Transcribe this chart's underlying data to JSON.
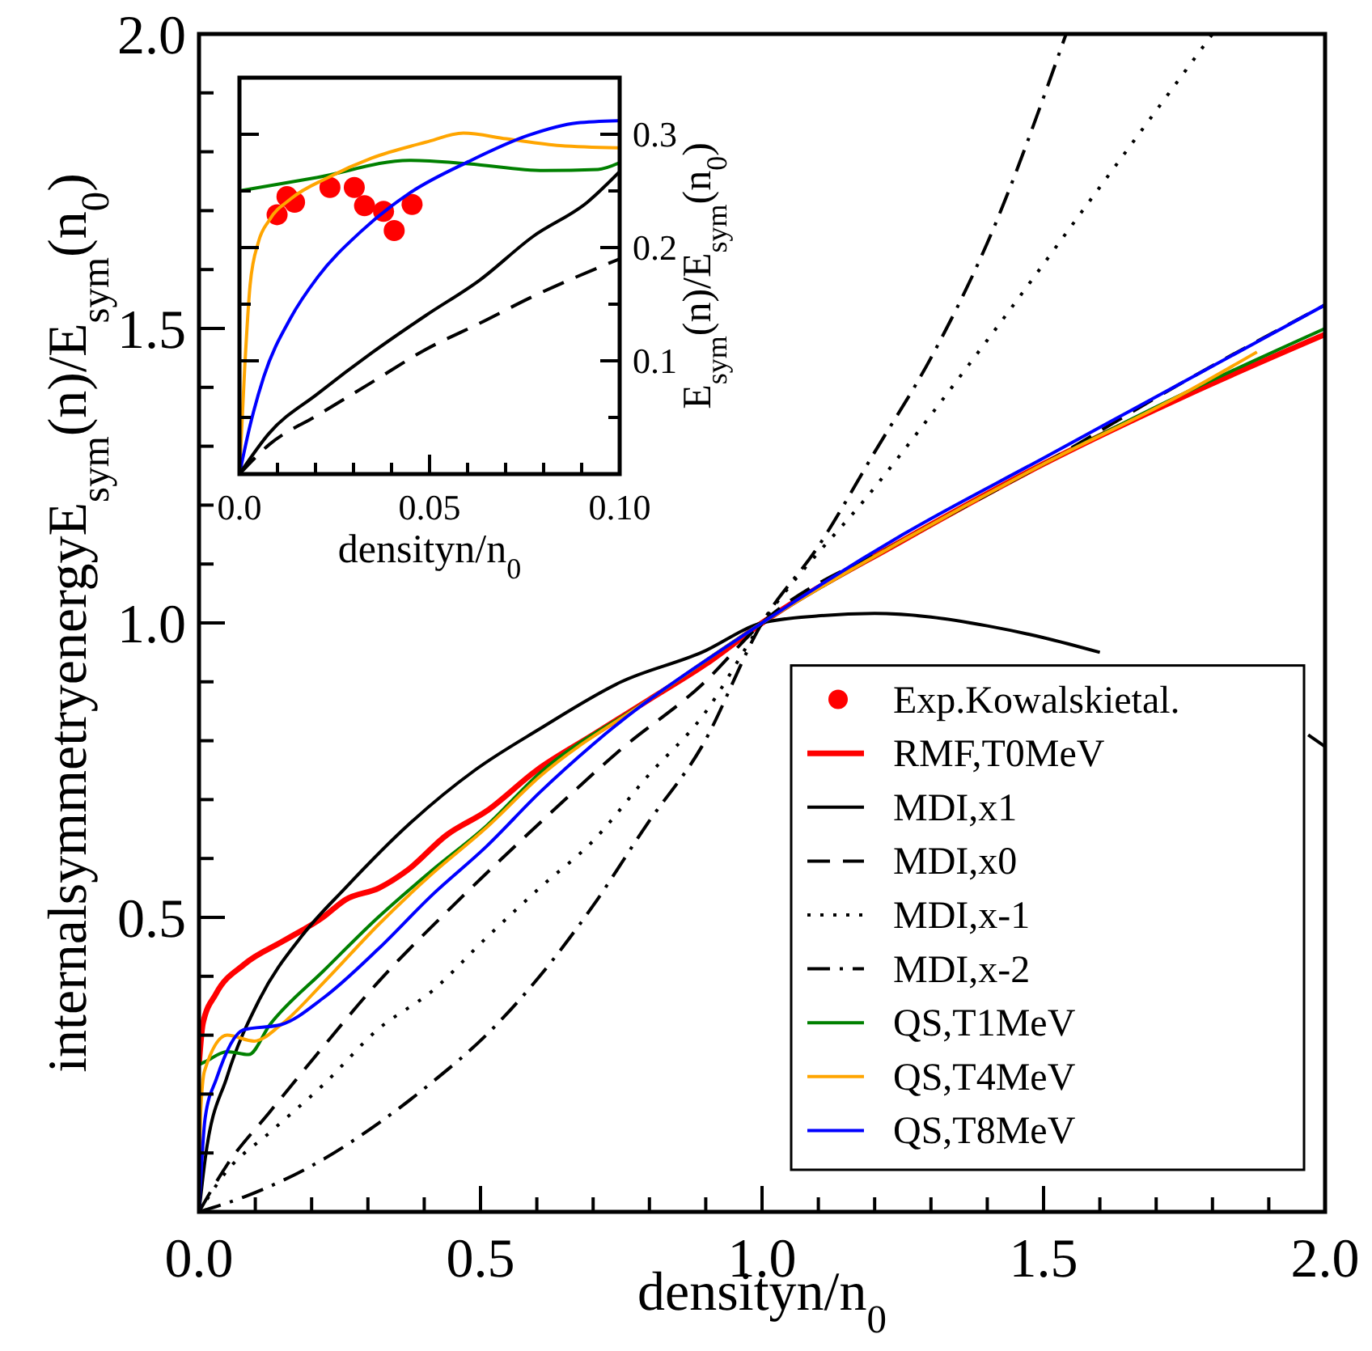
{
  "chart_data": [
    {
      "type": "line",
      "xlabel": "densityn/n$_{0}$",
      "ylabel": "internalsymmetryenergyE$_{sym}$(n)/E$_{sym}$(n$_{0}$)",
      "xlim": [
        0,
        2
      ],
      "ylim": [
        0,
        2
      ],
      "xticks": [
        {
          "value": 0,
          "label": "0.0"
        },
        {
          "value": 0.1,
          "label": null
        },
        {
          "value": 0.2,
          "label": null
        },
        {
          "value": 0.3,
          "label": null
        },
        {
          "value": 0.4,
          "label": null
        },
        0.5,
        {
          "value": 0.6,
          "label": null
        },
        {
          "value": 0.7,
          "label": null
        },
        {
          "value": 0.8,
          "label": null
        },
        {
          "value": 0.9,
          "label": null
        },
        {
          "value": 1,
          "label": "1.0"
        },
        {
          "value": 1.1,
          "label": null
        },
        {
          "value": 1.2,
          "label": null
        },
        {
          "value": 1.3,
          "label": null
        },
        {
          "value": 1.4,
          "label": null
        },
        1.5,
        {
          "value": 1.6,
          "label": null
        },
        {
          "value": 1.7,
          "label": null
        },
        {
          "value": 1.8,
          "label": null
        },
        {
          "value": 1.9,
          "label": null
        },
        {
          "value": 2,
          "label": "2.0"
        }
      ],
      "yticks": [
        {
          "value": 0,
          "label": null
        },
        {
          "value": 0.1,
          "label": null
        },
        {
          "value": 0.2,
          "label": null
        },
        {
          "value": 0.3,
          "label": null
        },
        {
          "value": 0.4,
          "label": null
        },
        0.5,
        {
          "value": 0.6,
          "label": null
        },
        {
          "value": 0.7,
          "label": null
        },
        {
          "value": 0.8,
          "label": null
        },
        {
          "value": 0.9,
          "label": null
        },
        {
          "value": 1,
          "label": "1.0"
        },
        {
          "value": 1.1,
          "label": null
        },
        {
          "value": 1.2,
          "label": null
        },
        {
          "value": 1.3,
          "label": null
        },
        {
          "value": 1.4,
          "label": null
        },
        1.5,
        {
          "value": 1.6,
          "label": null
        },
        {
          "value": 1.7,
          "label": null
        },
        {
          "value": 1.8,
          "label": null
        },
        {
          "value": 1.9,
          "label": null
        },
        {
          "value": 2,
          "label": "2.0"
        }
      ],
      "grid": false,
      "legend": "bottom right",
      "series": [
        {
          "name": "RMF,T0MeV",
          "color": "#ff0000",
          "line_style": "solid",
          "x": [
            0,
            0.007,
            0.03,
            0.08,
            0.15,
            0.22,
            0.26,
            0.32,
            0.37,
            0.44,
            0.51,
            0.6,
            0.7,
            0.8,
            0.9,
            1.0,
            1.25,
            1.5,
            1.75,
            2.0
          ],
          "values": [
            0.25,
            0.32,
            0.37,
            0.42,
            0.46,
            0.5,
            0.53,
            0.55,
            0.58,
            0.64,
            0.68,
            0.75,
            0.81,
            0.87,
            0.93,
            1.0,
            1.14,
            1.27,
            1.385,
            1.49
          ]
        },
        {
          "name": "MDI,x1",
          "color": "#000000",
          "line_style": "solid",
          "x": [
            0,
            0.011,
            0.05,
            0.107,
            0.184,
            0.26,
            0.375,
            0.49,
            0.605,
            0.75,
            0.893,
            1.0,
            1.1,
            1.2,
            1.3,
            1.4,
            1.5,
            1.6,
            1.75,
            1.9,
            1.97,
            2.0
          ],
          "values": [
            0,
            0.09,
            0.23,
            0.36,
            0.47,
            0.55,
            0.66,
            0.75,
            0.82,
            0.9,
            0.95,
            1.0,
            1.012,
            1.016,
            1.01,
            0.995,
            0.975,
            0.95,
            null,
            null,
            0.81,
            0.79
          ]
        },
        {
          "name": "MDI,x0",
          "color": "#000000",
          "line_style": "dashed",
          "x": [
            0,
            0.05,
            0.126,
            0.203,
            0.318,
            0.462,
            0.605,
            0.749,
            0.893,
            1.0,
            1.25,
            1.5,
            1.75,
            2.0
          ],
          "values": [
            0,
            0.08,
            0.17,
            0.26,
            0.39,
            0.53,
            0.66,
            0.785,
            0.895,
            1.0,
            1.14,
            1.27,
            1.41,
            1.54
          ]
        },
        {
          "name": "MDI,x-1",
          "color": "#000000",
          "line_style": "dotted",
          "x": [
            0,
            0.05,
            0.126,
            0.222,
            0.318,
            0.414,
            0.51,
            0.605,
            0.7,
            0.797,
            0.893,
            1.0,
            1.2,
            1.4,
            1.6,
            1.8
          ],
          "values": [
            0,
            0.07,
            0.135,
            0.217,
            0.31,
            0.375,
            0.465,
            0.55,
            0.63,
            0.74,
            0.84,
            1.0,
            1.23,
            1.48,
            1.74,
            2.0
          ]
        },
        {
          "name": "MDI,x-2",
          "color": "#000000",
          "line_style": "dashdot",
          "x": [
            0,
            0.079,
            0.222,
            0.318,
            0.414,
            0.51,
            0.605,
            0.7,
            0.797,
            0.893,
            1.0,
            1.1,
            1.2,
            1.3,
            1.4,
            1.54
          ],
          "values": [
            0,
            0.025,
            0.09,
            0.15,
            0.22,
            0.3,
            0.4,
            0.52,
            0.66,
            0.79,
            1.0,
            1.13,
            1.29,
            1.45,
            1.645,
            2.0
          ]
        },
        {
          "name": "QS,T1MeV",
          "color": "#008000",
          "line_style": "solid",
          "x": [
            0,
            0.011,
            0.05,
            0.088,
            0.126,
            0.222,
            0.318,
            0.414,
            0.51,
            0.605,
            0.8,
            1.0,
            1.25,
            1.5,
            1.75,
            2.0
          ],
          "values": [
            0.25,
            0.255,
            0.272,
            0.267,
            0.318,
            0.41,
            0.5,
            0.58,
            0.655,
            0.745,
            0.87,
            1.0,
            1.14,
            1.27,
            1.39,
            1.5
          ]
        },
        {
          "name": "QS,T4MeV",
          "color": "#ffa500",
          "line_style": "solid",
          "x": [
            0,
            0.003,
            0.01,
            0.05,
            0.098,
            0.146,
            0.222,
            0.318,
            0.414,
            0.51,
            0.605,
            0.8,
            1.0,
            1.25,
            1.5,
            1.75,
            1.879
          ],
          "values": [
            0,
            0.17,
            0.24,
            0.3,
            0.29,
            0.318,
            0.39,
            0.487,
            0.574,
            0.652,
            0.739,
            0.87,
            1.0,
            1.14,
            1.27,
            1.39,
            1.46
          ]
        },
        {
          "name": "QS,T8MeV",
          "color": "#0000ff",
          "line_style": "solid",
          "x": [
            0,
            0.011,
            0.031,
            0.079,
            0.146,
            0.222,
            0.318,
            0.414,
            0.51,
            0.605,
            0.7,
            1.0,
            1.25,
            1.5,
            1.75,
            2.0
          ],
          "values": [
            0,
            0.16,
            0.226,
            0.309,
            0.318,
            0.364,
            0.446,
            0.538,
            0.62,
            0.712,
            0.794,
            1.0,
            1.15,
            1.28,
            1.41,
            1.54
          ]
        }
      ]
    },
    {
      "type": "line",
      "xlabel": "densityn/n$_{0}$",
      "ylabel": "E$_{sym}$(n)/E$_{sym}$(n$_{0}$)",
      "xlim": [
        0,
        0.1
      ],
      "ylim": [
        0,
        0.35
      ],
      "xticks": [
        {
          "value": 0,
          "label": "0.0"
        },
        {
          "value": 0.01,
          "label": null
        },
        {
          "value": 0.02,
          "label": null
        },
        {
          "value": 0.03,
          "label": null
        },
        {
          "value": 0.04,
          "label": null
        },
        0.05,
        {
          "value": 0.06,
          "label": null
        },
        {
          "value": 0.07,
          "label": null
        },
        {
          "value": 0.08,
          "label": null
        },
        {
          "value": 0.09,
          "label": null
        },
        {
          "value": 0.1,
          "label": "0.10"
        }
      ],
      "yticks": [
        {
          "value": 0.05,
          "label": null
        },
        0.1,
        {
          "value": 0.15,
          "label": null
        },
        0.2,
        {
          "value": 0.25,
          "label": null
        },
        0.3
      ],
      "grid": false,
      "series": [
        {
          "name": "Exp.Kowalskietal.",
          "type": "scatter",
          "color": "#ff0000",
          "marker": "circle",
          "x": [
            0.0099,
            0.0125,
            0.0145,
            0.0238,
            0.0302,
            0.0329,
            0.0379,
            0.0407,
            0.0454
          ],
          "values": [
            0.229,
            0.245,
            0.24,
            0.253,
            0.253,
            0.237,
            0.232,
            0.215,
            0.238
          ]
        },
        {
          "color": "#008000",
          "line_style": "solid",
          "x": [
            0,
            0.0206,
            0.0447,
            0.0603,
            0.0801,
            0.0943,
            0.1
          ],
          "values": [
            0.25,
            0.262,
            0.277,
            0.274,
            0.268,
            0.269,
            0.275
          ]
        },
        {
          "color": "#ffa500",
          "line_style": "solid",
          "x": [
            0,
            0.0014,
            0.0028,
            0.005,
            0.0078,
            0.0135,
            0.0234,
            0.0348,
            0.049,
            0.0589,
            0.0702,
            0.0844,
            0.1
          ],
          "values": [
            0,
            0.095,
            0.167,
            0.205,
            0.224,
            0.243,
            0.262,
            0.279,
            0.293,
            0.301,
            0.296,
            0.29,
            0.288
          ]
        },
        {
          "color": "#0000ff",
          "line_style": "solid",
          "x": [
            0,
            0.0028,
            0.0064,
            0.0135,
            0.0206,
            0.0319,
            0.0447,
            0.0603,
            0.0759,
            0.0887,
            0.1
          ],
          "values": [
            0,
            0.043,
            0.086,
            0.138,
            0.174,
            0.214,
            0.248,
            0.276,
            0.299,
            0.31,
            0.312
          ]
        },
        {
          "color": "#000000",
          "line_style": "solid",
          "x": [
            0,
            0.0078,
            0.0206,
            0.0348,
            0.049,
            0.0631,
            0.0773,
            0.0915,
            0.1
          ],
          "values": [
            0,
            0.036,
            0.071,
            0.107,
            0.14,
            0.171,
            0.21,
            0.24,
            0.267
          ]
        },
        {
          "color": "#000000",
          "line_style": "dashed",
          "x": [
            0,
            0.0078,
            0.0206,
            0.0348,
            0.049,
            0.0631,
            0.0773,
            0.1
          ],
          "values": [
            0,
            0.026,
            0.052,
            0.081,
            0.11,
            0.133,
            0.157,
            0.19
          ]
        }
      ]
    }
  ]
}
